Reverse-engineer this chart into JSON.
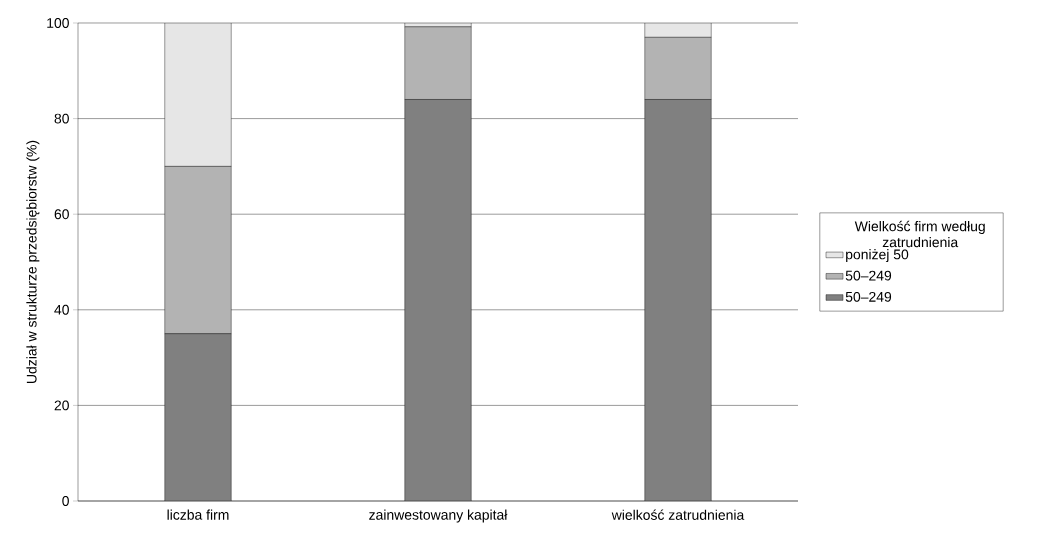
{
  "chart_data": {
    "type": "bar",
    "stacked": true,
    "ylabel": "Udział w strukturze przedsiębiorstw (%)",
    "legend_title": "Wielkość firm według zatrudnienia",
    "categories": [
      "liczba firm",
      "zainwestowany kapitał",
      "wielkość zatrudnienia"
    ],
    "series": [
      {
        "name": "50–249",
        "color": "#808080",
        "values": [
          35,
          84,
          84
        ]
      },
      {
        "name": "50–249",
        "color": "#b3b3b3",
        "values": [
          35,
          15.2,
          13
        ]
      },
      {
        "name": "poniżej 50",
        "color": "#e6e6e6",
        "values": [
          30,
          0.8,
          3
        ]
      }
    ],
    "ylim": [
      0,
      100
    ],
    "yticks": [
      0,
      20,
      40,
      60,
      80,
      100
    ],
    "grid": "y",
    "legend": "right"
  }
}
